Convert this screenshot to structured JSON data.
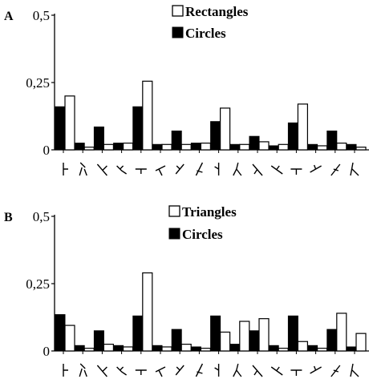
{
  "chart_data": [
    {
      "panel_label": "A",
      "type": "bar",
      "ylim": [
        0,
        0.5
      ],
      "y_tick_labels": [
        "0",
        "0,25",
        "0,5"
      ],
      "y_ticks": [
        0,
        0.25,
        0.5
      ],
      "legend_position": "top-center",
      "categories": [
        "pattern-1",
        "pattern-2",
        "pattern-3",
        "pattern-4",
        "pattern-5",
        "pattern-6",
        "pattern-7",
        "pattern-8",
        "pattern-9",
        "pattern-10",
        "pattern-11",
        "pattern-12",
        "pattern-13",
        "pattern-14",
        "pattern-15",
        "pattern-16"
      ],
      "series": [
        {
          "name": "Circles",
          "color": "#000000",
          "values": [
            0.16,
            0.025,
            0.085,
            0.025,
            0.16,
            0.02,
            0.07,
            0.025,
            0.105,
            0.02,
            0.05,
            0.015,
            0.1,
            0.02,
            0.07,
            0.02
          ]
        },
        {
          "name": "Rectangles",
          "color": "#ffffff",
          "values": [
            0.2,
            0.01,
            0.02,
            0.025,
            0.255,
            0.02,
            0.02,
            0.025,
            0.155,
            0.02,
            0.03,
            0.02,
            0.17,
            0.015,
            0.025,
            0.01
          ]
        }
      ]
    },
    {
      "panel_label": "B",
      "type": "bar",
      "ylim": [
        0,
        0.5
      ],
      "y_tick_labels": [
        "0",
        "0,25",
        "0,5"
      ],
      "y_ticks": [
        0,
        0.25,
        0.5
      ],
      "legend_position": "top-center",
      "categories": [
        "pattern-1",
        "pattern-2",
        "pattern-3",
        "pattern-4",
        "pattern-5",
        "pattern-6",
        "pattern-7",
        "pattern-8",
        "pattern-9",
        "pattern-10",
        "pattern-11",
        "pattern-12",
        "pattern-13",
        "pattern-14",
        "pattern-15",
        "pattern-16"
      ],
      "series": [
        {
          "name": "Circles",
          "color": "#000000",
          "values": [
            0.135,
            0.02,
            0.075,
            0.02,
            0.13,
            0.02,
            0.08,
            0.015,
            0.13,
            0.025,
            0.075,
            0.02,
            0.13,
            0.02,
            0.08,
            0.015
          ]
        },
        {
          "name": "Triangles",
          "color": "#ffffff",
          "values": [
            0.095,
            0.01,
            0.025,
            0.015,
            0.29,
            0.015,
            0.025,
            0.01,
            0.07,
            0.11,
            0.12,
            0.01,
            0.035,
            0.01,
            0.14,
            0.065
          ]
        }
      ]
    }
  ]
}
